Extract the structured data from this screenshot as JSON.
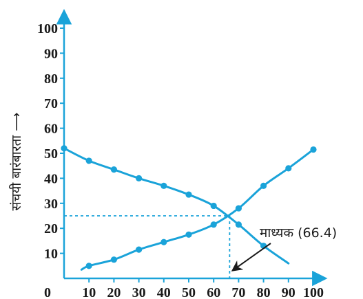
{
  "chart_data": {
    "type": "line",
    "title": "",
    "xlabel": "",
    "ylabel": "संचयी बारंबारता ⟶",
    "x_ticks": [
      "0",
      "10",
      "20",
      "30",
      "40",
      "50",
      "60",
      "70",
      "80",
      "90",
      "100"
    ],
    "y_ticks": [
      "10",
      "20",
      "30",
      "40",
      "50",
      "60",
      "70",
      "80",
      "90",
      "100"
    ],
    "xlim": [
      0,
      105
    ],
    "ylim": [
      0,
      107
    ],
    "grid": false,
    "series": [
      {
        "color": "#1aa3d9",
        "x": [
          0,
          10,
          20,
          30,
          40,
          50,
          60,
          70,
          80,
          90
        ],
        "y": [
          52,
          47,
          43.5,
          40,
          37,
          33.5,
          29,
          21.5,
          13,
          6
        ],
        "markers_at_x": [
          0,
          10,
          20,
          30,
          40,
          50,
          60,
          70,
          80
        ]
      },
      {
        "color": "#1aa3d9",
        "x": [
          7,
          10,
          20,
          30,
          40,
          50,
          60,
          70,
          80,
          90,
          100
        ],
        "y": [
          3.5,
          5,
          7.5,
          11.5,
          14.5,
          17.5,
          21.5,
          28,
          37,
          44,
          51.5
        ],
        "markers_at_x": [
          10,
          20,
          30,
          40,
          50,
          60,
          70,
          80,
          90,
          100
        ]
      }
    ],
    "intersection": {
      "x": 66.4,
      "y": 25
    },
    "annotation": {
      "text": "माध्यक (66.4)",
      "target_x": 66.4,
      "target_y": 0
    }
  },
  "colors": {
    "series": "#1aa3d9",
    "axis": "#1aa3d9",
    "text": "#1a1a1a"
  }
}
